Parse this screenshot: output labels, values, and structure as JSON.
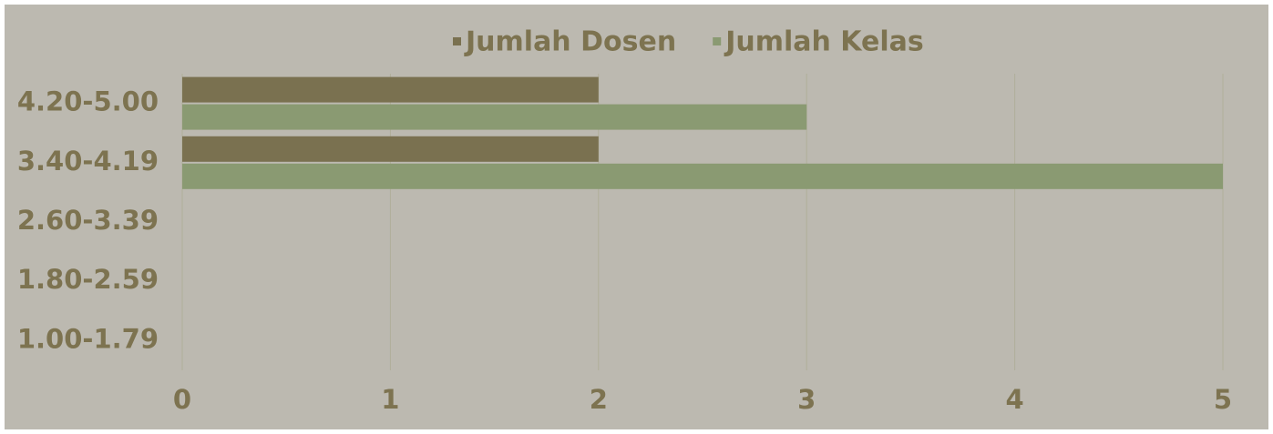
{
  "chart_data": {
    "type": "hbar",
    "categories": [
      "4.20-5.00",
      "3.40-4.19",
      "2.60-3.39",
      "1.80-2.59",
      "1.00-1.79"
    ],
    "series": [
      {
        "name": "Jumlah Dosen",
        "color": "#7a7150",
        "values": [
          2,
          2,
          0,
          0,
          0
        ]
      },
      {
        "name": "Jumlah Kelas",
        "color": "#8a9a72",
        "values": [
          3,
          5,
          0,
          0,
          0
        ]
      }
    ],
    "xlim": [
      0,
      5
    ],
    "xticks": [
      0,
      1,
      2,
      3,
      4,
      5
    ],
    "grid": true,
    "legend": "top"
  }
}
